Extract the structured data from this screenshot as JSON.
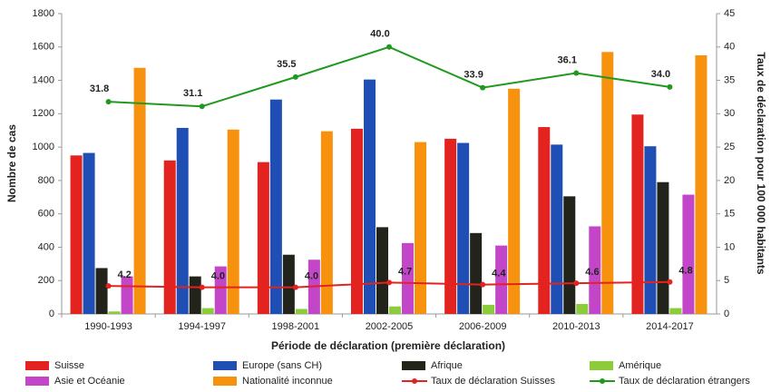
{
  "chart_data": {
    "type": "bar",
    "xlabel": "Période de déclaration (première déclaration)",
    "ylabel": "Nombre de cas",
    "y2label": "Taux de déclaration pour 100 000 habitants",
    "categories": [
      "1990-1993",
      "1994-1997",
      "1998-2001",
      "2002-2005",
      "2006-2009",
      "2010-2013",
      "2014-2017"
    ],
    "ylim": [
      0,
      1800
    ],
    "yticks": [
      0,
      200,
      400,
      600,
      800,
      1000,
      1200,
      1400,
      1600,
      1800
    ],
    "y2lim": [
      0,
      45
    ],
    "y2ticks": [
      0,
      5,
      10,
      15,
      20,
      25,
      30,
      35,
      40,
      45
    ],
    "grid": false,
    "series": [
      {
        "name": "Suisse",
        "color": "#e3231f",
        "values": [
          950,
          920,
          910,
          1110,
          1050,
          1120,
          1195
        ]
      },
      {
        "name": "Europe (sans CH)",
        "color": "#1f4fb4",
        "values": [
          965,
          1115,
          1285,
          1405,
          1025,
          1015,
          1005
        ]
      },
      {
        "name": "Afrique",
        "color": "#22241c",
        "values": [
          275,
          225,
          355,
          520,
          485,
          705,
          790
        ]
      },
      {
        "name": "Amérique",
        "color": "#8ccc3a",
        "values": [
          15,
          35,
          30,
          45,
          55,
          60,
          35
        ]
      },
      {
        "name": "Asie et Océanie",
        "color": "#c446c8",
        "values": [
          225,
          285,
          325,
          425,
          410,
          525,
          715
        ]
      },
      {
        "name": "Nationalité inconnue",
        "color": "#f7920f",
        "values": [
          1475,
          1105,
          1095,
          1030,
          1350,
          1570,
          1550
        ]
      },
      {
        "name": "Taux de déclaration Suisses",
        "color": "#e3231f",
        "type": "line",
        "axis": "y2",
        "values": [
          4.2,
          4.0,
          4.0,
          4.7,
          4.4,
          4.6,
          4.8
        ],
        "value_labels": [
          "4.2",
          "4.0",
          "4.0",
          "4.7",
          "4.4",
          "4.6",
          "4.8"
        ]
      },
      {
        "name": "Taux de déclaration étrangers",
        "color": "#1f9a1f",
        "type": "line",
        "axis": "y2",
        "values": [
          31.8,
          31.1,
          35.5,
          40.0,
          33.9,
          36.1,
          34.0
        ],
        "value_labels": [
          "31.8",
          "31.1",
          "35.5",
          "40.0",
          "33.9",
          "36.1",
          "34.0"
        ]
      }
    ]
  }
}
